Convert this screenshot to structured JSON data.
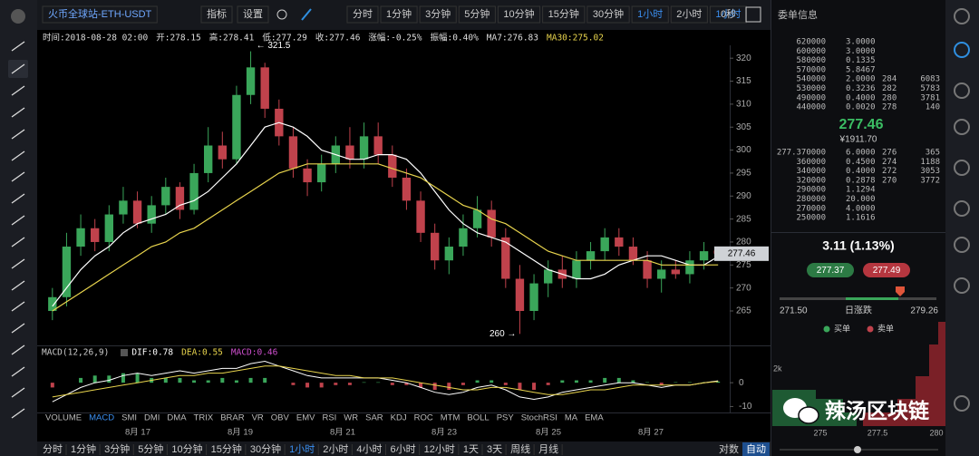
{
  "toolbar": {
    "symbol": "火币全球站-ETH-USDT",
    "indicator_btn": "指标",
    "settings_btn": "设置",
    "periods": [
      "分时",
      "1分钟",
      "3分钟",
      "5分钟",
      "10分钟",
      "15分钟",
      "30分钟",
      "1小时",
      "2小时",
      "1小时"
    ],
    "timer": "0秒"
  },
  "info_line": [
    "时间:2018-08-28 02:00",
    "开:278.15",
    "高:278.41",
    "低:277.29",
    "收:277.46",
    "涨幅:-0.25%",
    "振幅:0.40%",
    "MA7:276.83",
    "MA30:275.02"
  ],
  "chart_data": {
    "type": "candlestick",
    "open": [
      265,
      268,
      279,
      283,
      280,
      286,
      289,
      284,
      288,
      292,
      287,
      295,
      301,
      298,
      312,
      318,
      309,
      303,
      296,
      293,
      297,
      301,
      298,
      303,
      299,
      294,
      289,
      282,
      276,
      279,
      283,
      287,
      281,
      272,
      265,
      271,
      274,
      272,
      276,
      278,
      281,
      279,
      276,
      272,
      274,
      273,
      276,
      278.15
    ],
    "high": [
      270,
      282,
      286,
      285,
      288,
      292,
      291,
      290,
      294,
      293,
      297,
      305,
      304,
      314,
      321.5,
      319,
      311,
      305,
      298,
      299,
      303,
      305,
      306,
      306,
      301,
      296,
      291,
      284,
      281,
      286,
      290,
      289,
      283,
      275,
      273,
      276,
      277,
      278,
      280,
      283,
      283,
      281,
      278,
      276,
      276,
      278,
      280,
      278.41
    ],
    "low": [
      263,
      266,
      277,
      278,
      278,
      284,
      283,
      282,
      286,
      285,
      286,
      293,
      296,
      297,
      310,
      307,
      301,
      294,
      290,
      291,
      295,
      296,
      296,
      297,
      292,
      287,
      280,
      274,
      273,
      277,
      281,
      279,
      270,
      260,
      263,
      268,
      270,
      270,
      274,
      276,
      277,
      275,
      270,
      269,
      272,
      271,
      274,
      277.29
    ],
    "close": [
      268,
      279,
      283,
      280,
      286,
      289,
      284,
      288,
      292,
      287,
      295,
      301,
      298,
      312,
      318,
      309,
      303,
      296,
      293,
      297,
      301,
      298,
      303,
      299,
      294,
      289,
      282,
      276,
      279,
      283,
      287,
      281,
      272,
      265,
      271,
      274,
      272,
      276,
      278,
      281,
      279,
      276,
      272,
      274,
      273,
      276,
      278,
      277.46
    ],
    "up_color": "#3aa65a",
    "down_color": "#c0424c",
    "series": [
      {
        "color": "#ffffff",
        "values": [
          266,
          270,
          274,
          277,
          279,
          282,
          284,
          285,
          286,
          288,
          289,
          291,
          294,
          297,
          301,
          305,
          306,
          305,
          303,
          300,
          299,
          298,
          298,
          299,
          299,
          298,
          295,
          291,
          287,
          284,
          282,
          281,
          280,
          278,
          276,
          274,
          273,
          272,
          272,
          273,
          275,
          276,
          277,
          277,
          276,
          275,
          275,
          276.83
        ]
      },
      {
        "color": "#e8d44d",
        "values": [
          265,
          267,
          269,
          271,
          273,
          275,
          277,
          279,
          280,
          282,
          283,
          285,
          287,
          289,
          291,
          293,
          295,
          296,
          297,
          297,
          297,
          297,
          297,
          297,
          296,
          295,
          294,
          292,
          290,
          288,
          287,
          285,
          284,
          282,
          280,
          278,
          277,
          276,
          276,
          276,
          276,
          276,
          276,
          275,
          275,
          275,
          275,
          275.02
        ]
      }
    ],
    "ylim": [
      257.7,
      322.8
    ],
    "yticks": [
      265,
      270,
      275,
      280,
      285,
      290,
      295,
      300,
      305,
      310,
      315,
      320
    ],
    "high_label": "← 321.5",
    "low_label": "260 →",
    "price_tag": 277.46,
    "x_labels": [
      "8月 17",
      "8月 19",
      "8月 21",
      "8月 23",
      "8月 25",
      "8月 27"
    ]
  },
  "macd": {
    "title": "MACD(12,26,9)",
    "dif_label": "DIF:0.78",
    "dea_label": "DEA:0.55",
    "macd_label": "MACD:0.46",
    "ylim": [
      -12.5,
      13
    ],
    "yticks": [
      0,
      -10
    ],
    "hist": [
      -2,
      0,
      2,
      3,
      3,
      4,
      4,
      2,
      2,
      2,
      1,
      1,
      2,
      1,
      2,
      2,
      0,
      -1,
      -2,
      -2,
      -1,
      -1,
      0.2,
      0.2,
      -1,
      -1,
      -2,
      -3,
      -3,
      -1,
      1,
      1,
      -1,
      -3,
      -3,
      -1,
      1,
      1,
      1,
      2,
      2,
      1,
      0.2,
      -1,
      0.2,
      0.2,
      0.2,
      0.46
    ],
    "dif": [
      -8,
      -5,
      -2,
      0,
      1,
      3,
      4,
      3,
      4,
      5,
      4,
      5,
      6,
      6,
      8,
      9,
      7,
      5,
      3,
      2,
      2,
      2,
      2,
      2,
      1,
      0,
      -2,
      -4,
      -5,
      -4,
      -2,
      -1,
      -3,
      -6,
      -7,
      -6,
      -4,
      -3,
      -2,
      -1,
      0,
      0,
      -1,
      -2,
      -1,
      -1,
      0,
      0.78
    ],
    "dea": [
      -6,
      -5,
      -4,
      -3,
      -2,
      -1,
      0,
      1,
      2,
      3,
      3,
      4,
      4,
      5,
      6,
      7,
      7,
      6,
      5,
      4,
      3,
      3,
      2,
      2,
      2,
      1,
      0,
      -1,
      -2,
      -3,
      -3,
      -2,
      -2,
      -3,
      -4,
      -5,
      -5,
      -4,
      -3,
      -3,
      -2,
      -1,
      -1,
      -1,
      -1,
      -1,
      0,
      0.55
    ],
    "dif_color": "#ffffff",
    "dea_color": "#e8d44d"
  },
  "indicators": [
    "VOLUME",
    "MACD",
    "SMI",
    "DMI",
    "DMA",
    "TRIX",
    "BRAR",
    "VR",
    "OBV",
    "EMV",
    "RSI",
    "WR",
    "SAR",
    "KDJ",
    "ROC",
    "MTM",
    "BOLL",
    "PSY",
    "StochRSI",
    "MA",
    "EMA"
  ],
  "bottom_bar": {
    "periods": [
      "分时",
      "1分钟",
      "3分钟",
      "5分钟",
      "10分钟",
      "15分钟",
      "30分钟",
      "1小时",
      "2小时",
      "4小时",
      "6小时",
      "12小时",
      "1天",
      "3天",
      "周线",
      "月线"
    ],
    "log": "对数",
    "auto": "自动"
  },
  "order_book": {
    "title": "委单信息",
    "asks": [
      [
        "620000",
        "3.0000"
      ],
      [
        "600000",
        "3.0000"
      ],
      [
        "580000",
        "0.1335"
      ],
      [
        "570000",
        "5.8467"
      ],
      [
        "540000",
        "2.0000",
        "284",
        "6083"
      ],
      [
        "530000",
        "0.3236",
        "282",
        "5783"
      ],
      [
        "490000",
        "0.4000",
        "280",
        "3781"
      ],
      [
        "440000",
        "0.0020",
        "278",
        "140"
      ]
    ],
    "last_price": "277.46",
    "cny": "¥1911.70",
    "bids": [
      [
        "277.370000",
        "6.0000",
        "276",
        "365"
      ],
      [
        "360000",
        "0.4500",
        "274",
        "1188"
      ],
      [
        "340000",
        "0.4000",
        "272",
        "3053"
      ],
      [
        "320000",
        "0.2878",
        "270",
        "3772"
      ],
      [
        "290000",
        "1.1294"
      ],
      [
        "280000",
        "20.000"
      ],
      [
        "270000",
        "4.0000"
      ],
      [
        "250000",
        "1.1616"
      ]
    ]
  },
  "ticker": {
    "change": "3.11 (1.13%)",
    "buy": "277.37",
    "sell": "277.49",
    "low": "271.50",
    "range_label": "日涨跌",
    "high": "279.26",
    "legend": [
      "买单",
      "卖单"
    ],
    "depth_ylabel": "2k",
    "depth_xticks": [
      "275",
      "277.5",
      "280"
    ]
  },
  "watermark": "辣汤区块链"
}
